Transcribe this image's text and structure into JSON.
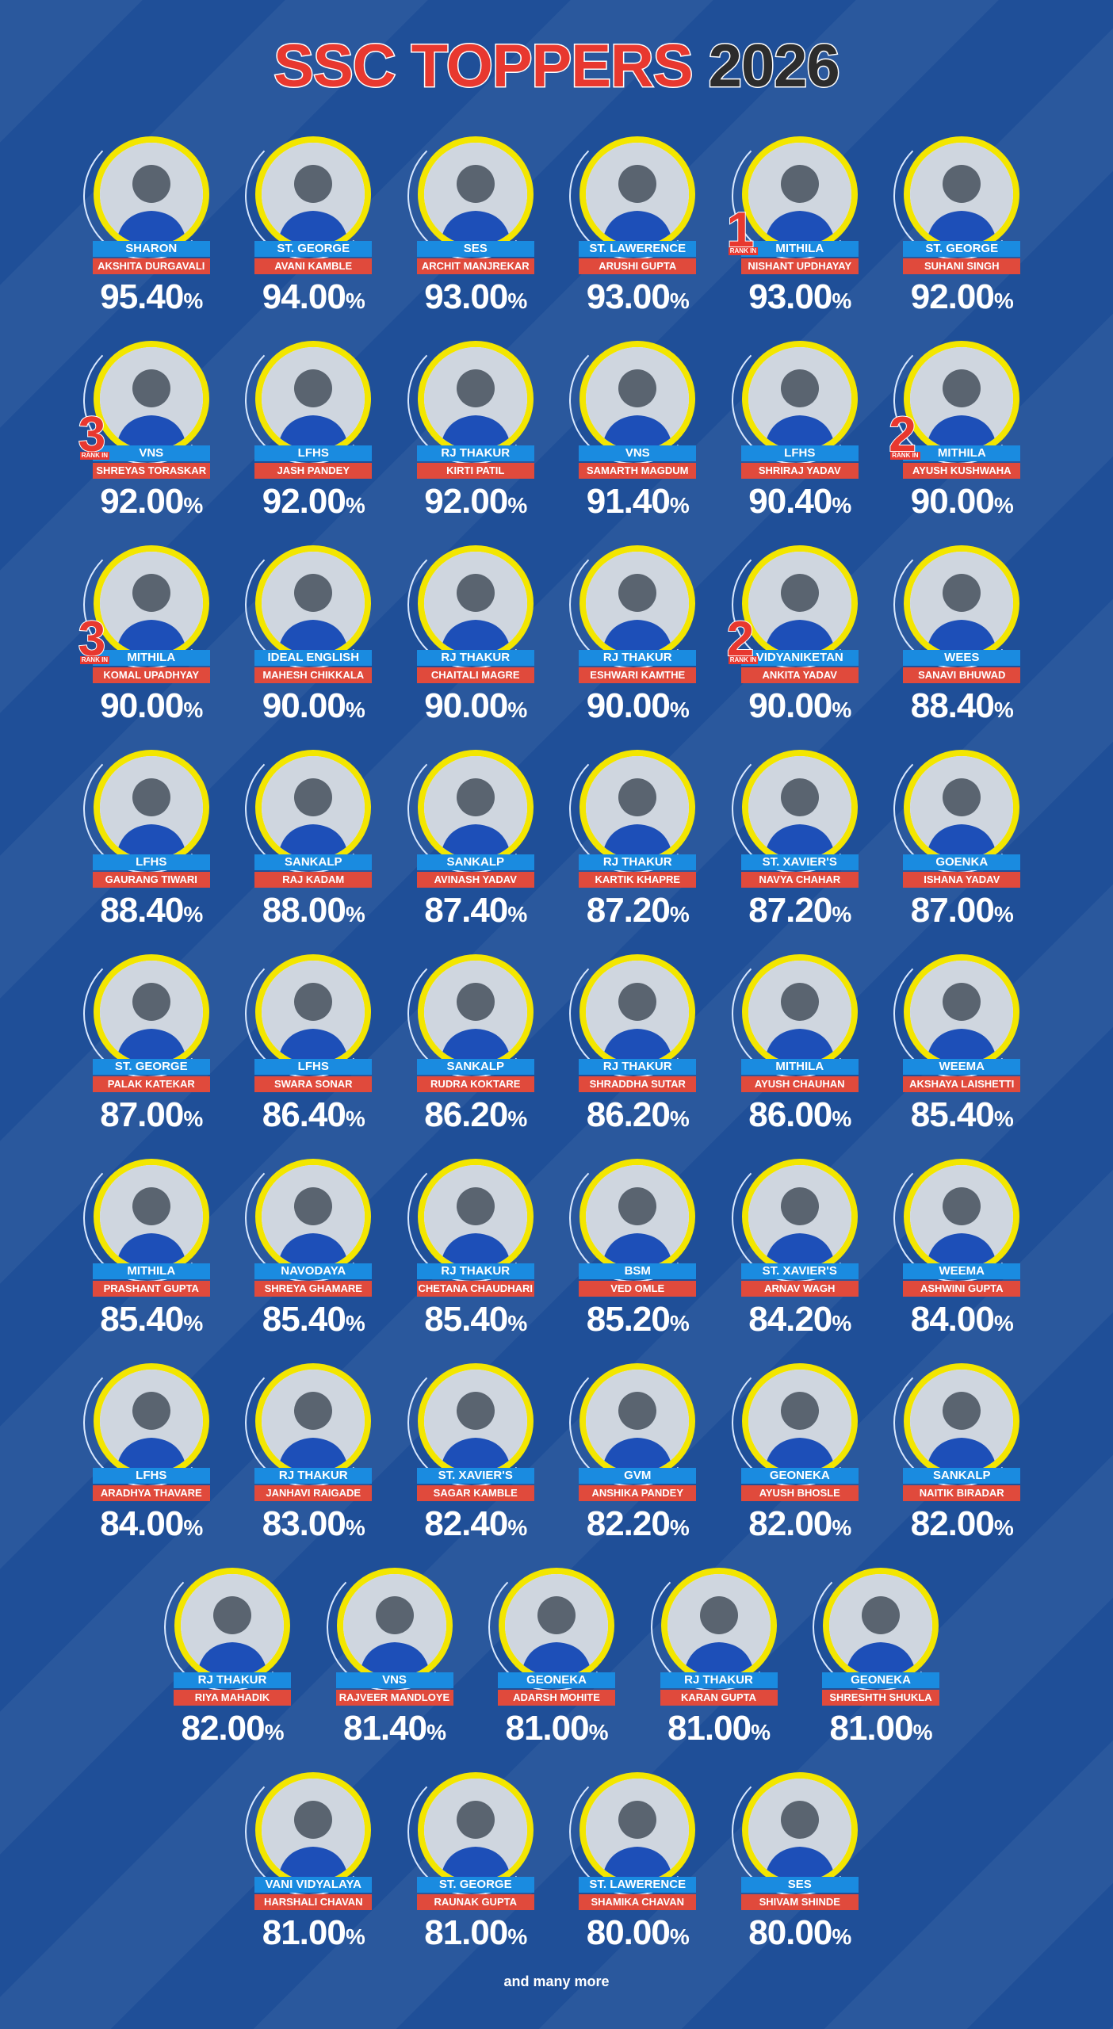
{
  "header": {
    "title_red": "SSC TOPPERS",
    "title_year": "2026"
  },
  "unit": "%",
  "rank_label": "RANK IN",
  "rows": [
    [
      {
        "school": "SHARON",
        "name": "AKSHITA DURGAVALI",
        "score": "95.40"
      },
      {
        "school": "ST. GEORGE",
        "name": "AVANI KAMBLE",
        "score": "94.00"
      },
      {
        "school": "SES",
        "name": "ARCHIT MANJREKAR",
        "score": "93.00"
      },
      {
        "school": "ST. LAWERENCE",
        "name": "ARUSHI GUPTA",
        "score": "93.00"
      },
      {
        "school": "MITHILA",
        "name": "NISHANT UPDHAYAY",
        "score": "93.00",
        "rank": "1"
      },
      {
        "school": "ST. GEORGE",
        "name": "SUHANI SINGH",
        "score": "92.00"
      }
    ],
    [
      {
        "school": "VNS",
        "name": "SHREYAS TORASKAR",
        "score": "92.00",
        "rank": "3"
      },
      {
        "school": "LFHS",
        "name": "JASH PANDEY",
        "score": "92.00"
      },
      {
        "school": "RJ THAKUR",
        "name": "KIRTI PATIL",
        "score": "92.00"
      },
      {
        "school": "VNS",
        "name": "SAMARTH MAGDUM",
        "score": "91.40"
      },
      {
        "school": "LFHS",
        "name": "SHRIRAJ YADAV",
        "score": "90.40"
      },
      {
        "school": "MITHILA",
        "name": "AYUSH KUSHWAHA",
        "score": "90.00",
        "rank": "2"
      }
    ],
    [
      {
        "school": "MITHILA",
        "name": "KOMAL UPADHYAY",
        "score": "90.00",
        "rank": "3"
      },
      {
        "school": "IDEAL ENGLISH",
        "name": "MAHESH CHIKKALA",
        "score": "90.00"
      },
      {
        "school": "RJ THAKUR",
        "name": "CHAITALI MAGRE",
        "score": "90.00"
      },
      {
        "school": "RJ THAKUR",
        "name": "ESHWARI KAMTHE",
        "score": "90.00"
      },
      {
        "school": "VIDYANIKETAN",
        "name": "ANKITA YADAV",
        "score": "90.00",
        "rank": "2"
      },
      {
        "school": "WEES",
        "name": "SANAVI BHUWAD",
        "score": "88.40"
      }
    ],
    [
      {
        "school": "LFHS",
        "name": "GAURANG TIWARI",
        "score": "88.40"
      },
      {
        "school": "SANKALP",
        "name": "RAJ KADAM",
        "score": "88.00"
      },
      {
        "school": "SANKALP",
        "name": "AVINASH YADAV",
        "score": "87.40"
      },
      {
        "school": "RJ THAKUR",
        "name": "KARTIK KHAPRE",
        "score": "87.20"
      },
      {
        "school": "ST. XAVIER'S",
        "name": "NAVYA CHAHAR",
        "score": "87.20"
      },
      {
        "school": "GOENKA",
        "name": "ISHANA YADAV",
        "score": "87.00"
      }
    ],
    [
      {
        "school": "ST. GEORGE",
        "name": "PALAK KATEKAR",
        "score": "87.00"
      },
      {
        "school": "LFHS",
        "name": "SWARA SONAR",
        "score": "86.40"
      },
      {
        "school": "SANKALP",
        "name": "RUDRA KOKTARE",
        "score": "86.20"
      },
      {
        "school": "RJ THAKUR",
        "name": "SHRADDHA SUTAR",
        "score": "86.20"
      },
      {
        "school": "MITHILA",
        "name": "AYUSH CHAUHAN",
        "score": "86.00"
      },
      {
        "school": "WEEMA",
        "name": "AKSHAYA LAISHETTI",
        "score": "85.40"
      }
    ],
    [
      {
        "school": "MITHILA",
        "name": "PRASHANT GUPTA",
        "score": "85.40"
      },
      {
        "school": "NAVODAYA",
        "name": "SHREYA GHAMARE",
        "score": "85.40"
      },
      {
        "school": "RJ THAKUR",
        "name": "CHETANA CHAUDHARI",
        "score": "85.40"
      },
      {
        "school": "BSM",
        "name": "VED OMLE",
        "score": "85.20"
      },
      {
        "school": "ST. XAVIER'S",
        "name": "ARNAV WAGH",
        "score": "84.20"
      },
      {
        "school": "WEEMA",
        "name": "ASHWINI GUPTA",
        "score": "84.00"
      }
    ],
    [
      {
        "school": "LFHS",
        "name": "ARADHYA THAVARE",
        "score": "84.00"
      },
      {
        "school": "RJ THAKUR",
        "name": "JANHAVI RAIGADE",
        "score": "83.00"
      },
      {
        "school": "ST. XAVIER'S",
        "name": "SAGAR KAMBLE",
        "score": "82.40"
      },
      {
        "school": "GVM",
        "name": "ANSHIKA PANDEY",
        "score": "82.20"
      },
      {
        "school": "GEONEKA",
        "name": "AYUSH BHOSLE",
        "score": "82.00"
      },
      {
        "school": "SANKALP",
        "name": "NAITIK BIRADAR",
        "score": "82.00"
      }
    ],
    [
      {
        "school": "RJ THAKUR",
        "name": "RIYA MAHADIK",
        "score": "82.00"
      },
      {
        "school": "VNS",
        "name": "RAJVEER MANDLOYE",
        "score": "81.40"
      },
      {
        "school": "GEONEKA",
        "name": "ADARSH MOHITE",
        "score": "81.00"
      },
      {
        "school": "RJ THAKUR",
        "name": "KARAN GUPTA",
        "score": "81.00"
      },
      {
        "school": "GEONEKA",
        "name": "SHRESHTH SHUKLA",
        "score": "81.00"
      }
    ],
    [
      {
        "school": "VANI VIDYALAYA",
        "name": "HARSHALI CHAVAN",
        "score": "81.00"
      },
      {
        "school": "ST. GEORGE",
        "name": "RAUNAK GUPTA",
        "score": "81.00"
      },
      {
        "school": "ST. LAWERENCE",
        "name": "SHAMIKA CHAVAN",
        "score": "80.00"
      },
      {
        "school": "SES",
        "name": "SHIVAM SHINDE",
        "score": "80.00"
      }
    ]
  ],
  "footer": "and many more"
}
